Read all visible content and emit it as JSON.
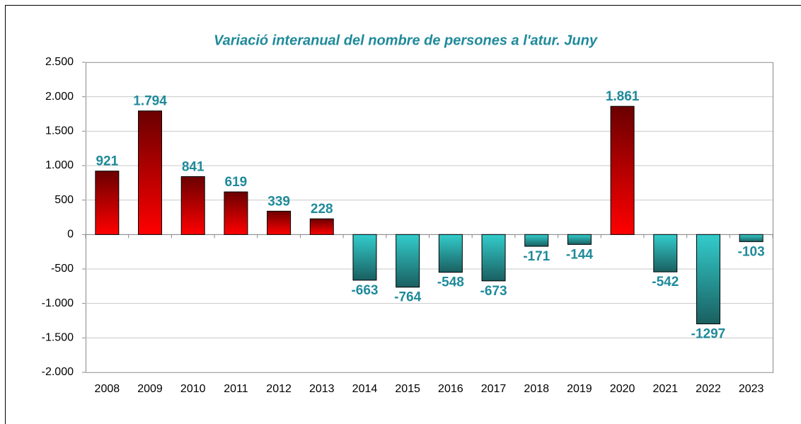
{
  "chart_data": {
    "type": "bar",
    "title": "Variació interanual del nombre de persones a l'atur. Juny",
    "categories": [
      "2008",
      "2009",
      "2010",
      "2011",
      "2012",
      "2013",
      "2014",
      "2015",
      "2016",
      "2017",
      "2018",
      "2019",
      "2020",
      "2021",
      "2022",
      "2023"
    ],
    "values": [
      921,
      1794,
      841,
      619,
      339,
      228,
      -663,
      -764,
      -548,
      -673,
      -171,
      -144,
      1861,
      -542,
      -1297,
      -103
    ],
    "value_labels": [
      "921",
      "1.794",
      "841",
      "619",
      "339",
      "228",
      "-663",
      "-764",
      "-548",
      "-673",
      "-171",
      "-144",
      "1.861",
      "-542",
      "-1297",
      "-103"
    ],
    "color_positive": "#ff0000",
    "color_negative": "#33cccc",
    "ylim": [
      -2000,
      2500
    ],
    "yticks": [
      {
        "value": -2000,
        "label": "-2.000"
      },
      {
        "value": -1500,
        "label": "-1.500"
      },
      {
        "value": -1000,
        "label": "-1.000"
      },
      -500,
      0,
      500,
      {
        "value": 1000,
        "label": "1.000"
      },
      {
        "value": 1500,
        "label": "1.500"
      },
      {
        "value": 2000,
        "label": "2.000"
      },
      {
        "value": 2500,
        "label": "2.500"
      }
    ],
    "grid": true
  }
}
